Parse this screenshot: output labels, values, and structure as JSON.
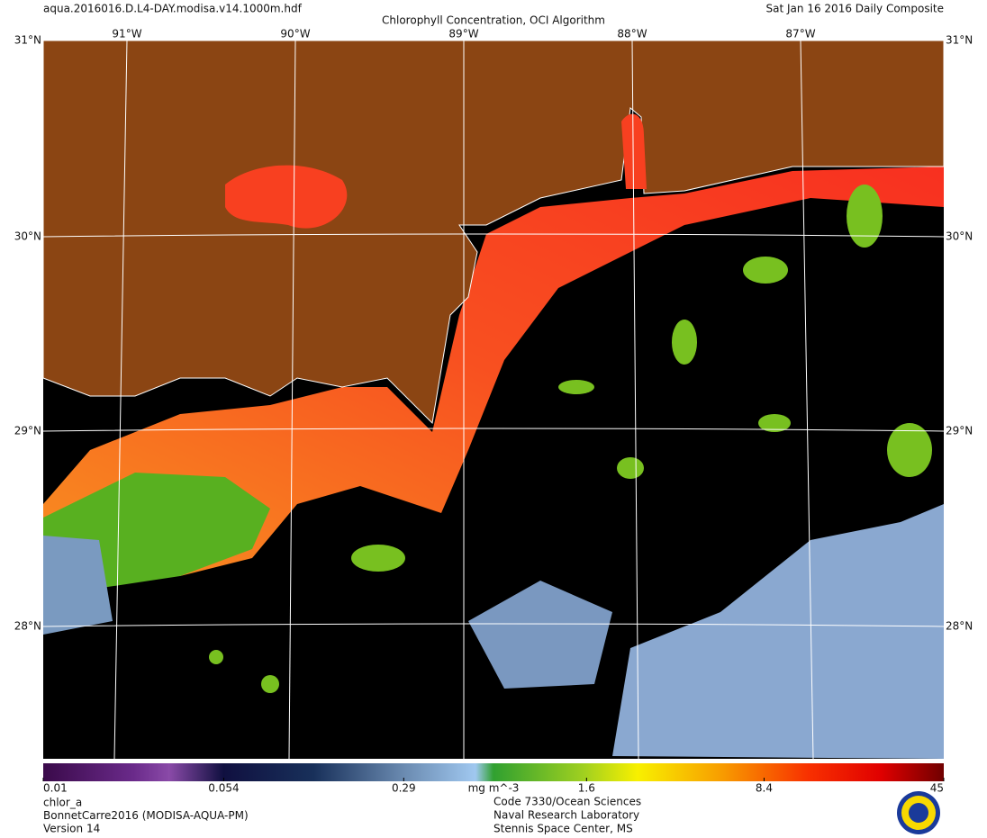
{
  "header": {
    "filename": "aqua.2016016.D.L4-DAY.modisa.v14.1000m.hdf",
    "title": "Chlorophyll Concentration, OCI Algorithm",
    "date": "Sat Jan 16 2016 Daily Composite"
  },
  "map": {
    "lat_labels": [
      "31°N",
      "30°N",
      "29°N",
      "28°N"
    ],
    "lon_labels": [
      "91°W",
      "90°W",
      "89°W",
      "88°W",
      "87°W"
    ]
  },
  "colorbar": {
    "scale": "log",
    "ticks": [
      0.01,
      0.054,
      0.29,
      1.6,
      8.4,
      45
    ],
    "unit": "mg m^-3"
  },
  "footer": {
    "left": [
      "chlor_a",
      "BonnetCarre2016 (MODISA-AQUA-PM)",
      "Version 14"
    ],
    "right": [
      "Code 7330/Ocean Sciences",
      "Naval Research Laboratory",
      "Stennis Space Center, MS"
    ]
  }
}
